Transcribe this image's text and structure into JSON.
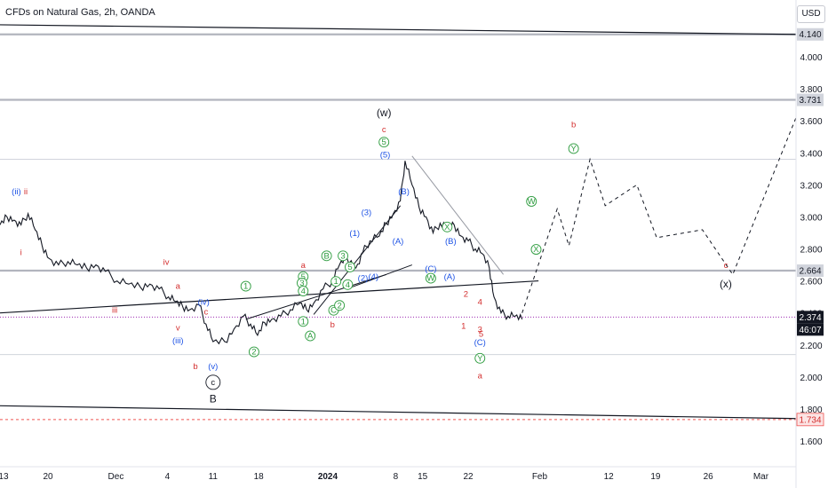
{
  "header": {
    "title": "CFDs on Natural Gas, 2h, OANDA",
    "currency_button": "USD"
  },
  "colors": {
    "red": "#e53935",
    "blue": "#2962ff",
    "green": "#43a047",
    "dark": "#131722",
    "grey_line": "#9598a1",
    "current_price": "#131722",
    "dashed_red": "#ef5350"
  },
  "chart_data": {
    "type": "line",
    "symbol": "CFDs on Natural Gas",
    "timeframe": "2h",
    "broker": "OANDA",
    "ylim": [
      1.55,
      4.25
    ],
    "y_ticks": [
      "4.000",
      "3.800",
      "3.600",
      "3.400",
      "3.200",
      "3.000",
      "2.800",
      "2.600",
      "2.400",
      "2.200",
      "2.000",
      "1.800",
      "1.600"
    ],
    "x_ticks": [
      "13",
      "20",
      "Dec",
      "4",
      "11",
      "18",
      "2024",
      "8",
      "15",
      "22",
      "Feb",
      "12",
      "19",
      "26",
      "Mar"
    ],
    "price_labels": [
      {
        "value": "4.140",
        "style": "grey"
      },
      {
        "value": "3.731",
        "style": "grey"
      },
      {
        "value": "2.664",
        "style": "grey"
      },
      {
        "value": "2.374",
        "style": "current"
      },
      {
        "value": "46:07",
        "style": "countdown"
      },
      {
        "value": "1.734",
        "style": "red"
      }
    ],
    "horizontal_levels": [
      4.14,
      3.731,
      2.664,
      2.374,
      1.734
    ],
    "price_path": [
      [
        0.0,
        2.95
      ],
      [
        0.6,
        3.0
      ],
      [
        1.2,
        2.98
      ],
      [
        1.8,
        2.95
      ],
      [
        2.4,
        3.02
      ],
      [
        3.0,
        2.92
      ],
      [
        3.6,
        2.82
      ],
      [
        4.2,
        2.74
      ],
      [
        5.0,
        2.7
      ],
      [
        5.8,
        2.72
      ],
      [
        6.6,
        2.7
      ],
      [
        7.4,
        2.68
      ],
      [
        8.2,
        2.7
      ],
      [
        9.0,
        2.66
      ],
      [
        10.0,
        2.6
      ],
      [
        11.0,
        2.58
      ],
      [
        12.0,
        2.56
      ],
      [
        12.8,
        2.58
      ],
      [
        13.6,
        2.55
      ],
      [
        14.4,
        2.5
      ],
      [
        15.0,
        2.47
      ],
      [
        15.6,
        2.44
      ],
      [
        16.2,
        2.42
      ],
      [
        17.0,
        2.45
      ],
      [
        17.6,
        2.33
      ],
      [
        18.2,
        2.22
      ],
      [
        19.2,
        2.22
      ],
      [
        20.0,
        2.3
      ],
      [
        20.8,
        2.38
      ],
      [
        21.4,
        2.33
      ],
      [
        22.0,
        2.26
      ],
      [
        22.6,
        2.34
      ],
      [
        23.2,
        2.36
      ],
      [
        24.0,
        2.38
      ],
      [
        24.8,
        2.42
      ],
      [
        25.6,
        2.46
      ],
      [
        26.2,
        2.42
      ],
      [
        26.8,
        2.46
      ],
      [
        27.6,
        2.55
      ],
      [
        28.4,
        2.6
      ],
      [
        29.0,
        2.7
      ],
      [
        29.6,
        2.75
      ],
      [
        30.4,
        2.68
      ],
      [
        31.0,
        2.78
      ],
      [
        31.6,
        2.85
      ],
      [
        32.4,
        2.88
      ],
      [
        33.0,
        2.96
      ],
      [
        33.6,
        3.02
      ],
      [
        34.2,
        3.1
      ],
      [
        34.6,
        3.35
      ],
      [
        35.2,
        3.2
      ],
      [
        35.8,
        3.06
      ],
      [
        36.4,
        3.0
      ],
      [
        37.0,
        2.9
      ],
      [
        37.6,
        2.96
      ],
      [
        38.2,
        2.92
      ],
      [
        38.8,
        2.95
      ],
      [
        39.4,
        2.88
      ],
      [
        40.0,
        2.85
      ],
      [
        40.6,
        2.8
      ],
      [
        41.2,
        2.77
      ],
      [
        41.8,
        2.68
      ],
      [
        42.2,
        2.5
      ],
      [
        42.8,
        2.4
      ],
      [
        43.4,
        2.38
      ],
      [
        44.0,
        2.38
      ],
      [
        44.6,
        2.36
      ]
    ],
    "projection_path": [
      [
        44.6,
        2.4
      ],
      [
        47.6,
        3.05
      ],
      [
        48.6,
        2.82
      ],
      [
        50.4,
        3.36
      ],
      [
        51.7,
        3.07
      ],
      [
        54.4,
        3.2
      ],
      [
        56.1,
        2.87
      ],
      [
        60.0,
        2.92
      ],
      [
        62.6,
        2.64
      ],
      [
        68.0,
        3.62
      ]
    ],
    "trendlines": [
      [
        [
          0.0,
          2.4
        ],
        [
          46.0,
          2.6
        ]
      ],
      [
        [
          0.0,
          1.82
        ],
        [
          68.0,
          1.74
        ]
      ],
      [
        [
          0.0,
          4.2
        ],
        [
          68.0,
          4.14
        ]
      ],
      [
        [
          35.2,
          3.38
        ],
        [
          43.0,
          2.64
        ]
      ],
      [
        [
          21.0,
          2.36
        ],
        [
          33.0,
          2.64
        ]
      ],
      [
        [
          26.8,
          2.39
        ],
        [
          34.2,
          3.07
        ]
      ],
      [
        [
          30.0,
          2.56
        ],
        [
          35.2,
          2.7
        ]
      ]
    ],
    "annotations": [
      {
        "text": "(ii)",
        "color": "blue",
        "x": 1.4,
        "y": 3.14
      },
      {
        "text": "ii",
        "color": "red",
        "x": 2.2,
        "y": 3.14
      },
      {
        "text": "i",
        "color": "red",
        "x": 1.8,
        "y": 2.76
      },
      {
        "text": "iv",
        "color": "red",
        "x": 14.2,
        "y": 2.7
      },
      {
        "text": "a",
        "color": "red",
        "x": 15.2,
        "y": 2.55
      },
      {
        "text": "iii",
        "color": "red",
        "x": 9.8,
        "y": 2.4
      },
      {
        "text": "(iv)",
        "color": "blue",
        "x": 17.4,
        "y": 2.45
      },
      {
        "text": "c",
        "color": "red",
        "x": 17.6,
        "y": 2.39
      },
      {
        "text": "v",
        "color": "red",
        "x": 15.2,
        "y": 2.29
      },
      {
        "text": "(iii)",
        "color": "blue",
        "x": 15.2,
        "y": 2.21
      },
      {
        "text": "b",
        "color": "red",
        "x": 16.7,
        "y": 2.05
      },
      {
        "text": "(v)",
        "color": "blue",
        "x": 18.2,
        "y": 2.05
      },
      {
        "text": "c",
        "color": "dark",
        "x": 18.2,
        "y": 1.95,
        "circled": true
      },
      {
        "text": "B",
        "color": "dark",
        "x": 18.2,
        "y": 1.84
      },
      {
        "text": "1",
        "color": "green",
        "x": 21.0,
        "y": 2.55,
        "circled": true
      },
      {
        "text": "2",
        "color": "green",
        "x": 21.7,
        "y": 2.14,
        "circled": true
      },
      {
        "text": "A",
        "color": "green",
        "x": 26.5,
        "y": 2.24,
        "circled": true
      },
      {
        "text": "a",
        "color": "red",
        "x": 25.9,
        "y": 2.68
      },
      {
        "text": "b",
        "color": "red",
        "x": 28.4,
        "y": 2.31
      },
      {
        "text": "5",
        "color": "green",
        "x": 25.9,
        "y": 2.61,
        "circled": true
      },
      {
        "text": "3",
        "color": "green",
        "x": 25.8,
        "y": 2.57,
        "circled": true
      },
      {
        "text": "4",
        "color": "green",
        "x": 25.9,
        "y": 2.52,
        "circled": true
      },
      {
        "text": "1",
        "color": "green",
        "x": 25.9,
        "y": 2.33,
        "circled": true
      },
      {
        "text": "B",
        "color": "green",
        "x": 27.9,
        "y": 2.74,
        "circled": true
      },
      {
        "text": "C",
        "color": "green",
        "x": 28.5,
        "y": 2.4,
        "circled": true
      },
      {
        "text": "2",
        "color": "green",
        "x": 29.0,
        "y": 2.43,
        "circled": true
      },
      {
        "text": "1",
        "color": "green",
        "x": 28.7,
        "y": 2.58,
        "circled": true
      },
      {
        "text": "3",
        "color": "green",
        "x": 29.3,
        "y": 2.74,
        "circled": true
      },
      {
        "text": "4",
        "color": "green",
        "x": 29.7,
        "y": 2.56,
        "circled": true
      },
      {
        "text": "5",
        "color": "green",
        "x": 29.9,
        "y": 2.67,
        "circled": true
      },
      {
        "text": "(1)",
        "color": "blue",
        "x": 30.3,
        "y": 2.88
      },
      {
        "text": "(2)",
        "color": "blue",
        "x": 31.0,
        "y": 2.6
      },
      {
        "text": "(3)",
        "color": "blue",
        "x": 31.3,
        "y": 3.01
      },
      {
        "text": "(4)",
        "color": "blue",
        "x": 31.9,
        "y": 2.61
      },
      {
        "text": "(5)",
        "color": "blue",
        "x": 32.9,
        "y": 3.37
      },
      {
        "text": "5",
        "color": "green",
        "x": 32.8,
        "y": 3.45,
        "circled": true
      },
      {
        "text": "c",
        "color": "red",
        "x": 32.8,
        "y": 3.53
      },
      {
        "text": "(w)",
        "color": "dark",
        "x": 32.8,
        "y": 3.63
      },
      {
        "text": "(B)",
        "color": "blue",
        "x": 34.5,
        "y": 3.14
      },
      {
        "text": "(A)",
        "color": "blue",
        "x": 34.0,
        "y": 2.83
      },
      {
        "text": "(C)",
        "color": "blue",
        "x": 36.8,
        "y": 2.66
      },
      {
        "text": "W",
        "color": "green",
        "x": 36.8,
        "y": 2.6,
        "circled": true
      },
      {
        "text": "X",
        "color": "green",
        "x": 38.2,
        "y": 2.92,
        "circled": true
      },
      {
        "text": "(B)",
        "color": "blue",
        "x": 38.5,
        "y": 2.83
      },
      {
        "text": "(A)",
        "color": "blue",
        "x": 38.4,
        "y": 2.61
      },
      {
        "text": "2",
        "color": "red",
        "x": 39.8,
        "y": 2.5
      },
      {
        "text": "4",
        "color": "red",
        "x": 41.0,
        "y": 2.45
      },
      {
        "text": "1",
        "color": "red",
        "x": 39.6,
        "y": 2.3
      },
      {
        "text": "3",
        "color": "red",
        "x": 41.0,
        "y": 2.28
      },
      {
        "text": "5",
        "color": "red",
        "x": 41.1,
        "y": 2.25
      },
      {
        "text": "(C)",
        "color": "blue",
        "x": 41.0,
        "y": 2.2
      },
      {
        "text": "Y",
        "color": "green",
        "x": 41.0,
        "y": 2.1,
        "circled": true
      },
      {
        "text": "a",
        "color": "red",
        "x": 41.0,
        "y": 1.99
      },
      {
        "text": "W",
        "color": "green",
        "x": 45.4,
        "y": 3.08,
        "circled": true
      },
      {
        "text": "X",
        "color": "green",
        "x": 45.8,
        "y": 2.78,
        "circled": true
      },
      {
        "text": "Y",
        "color": "green",
        "x": 49.0,
        "y": 3.41,
        "circled": true
      },
      {
        "text": "b",
        "color": "red",
        "x": 49.0,
        "y": 3.56
      },
      {
        "text": "c",
        "color": "red",
        "x": 62.0,
        "y": 2.68
      },
      {
        "text": "(x)",
        "color": "dark",
        "x": 62.0,
        "y": 2.56
      }
    ]
  }
}
